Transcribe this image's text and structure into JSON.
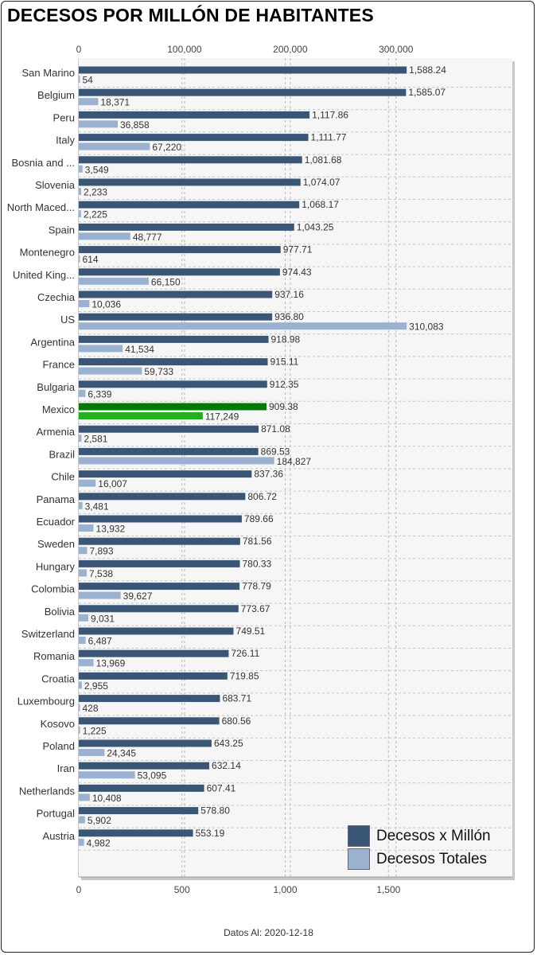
{
  "title": "DECESOS POR MILLÓN DE HABITANTES",
  "footer": "Datos Al: 2020-12-18",
  "colors": {
    "per_million": "#3a5677",
    "total": "#9ab2d0",
    "highlight_per_million": "#007a00",
    "highlight_total": "#20b020"
  },
  "chart_data": {
    "type": "bar",
    "orientation": "horizontal",
    "highlight": "Mexico",
    "categories": [
      "San Marino",
      "Belgium",
      "Peru",
      "Italy",
      "Bosnia and ...",
      "Slovenia",
      "North Maced...",
      "Spain",
      "Montenegro",
      "United King...",
      "Czechia",
      "US",
      "Argentina",
      "France",
      "Bulgaria",
      "Mexico",
      "Armenia",
      "Brazil",
      "Chile",
      "Panama",
      "Ecuador",
      "Sweden",
      "Hungary",
      "Colombia",
      "Bolivia",
      "Switzerland",
      "Romania",
      "Croatia",
      "Luxembourg",
      "Kosovo",
      "Poland",
      "Iran",
      "Netherlands",
      "Portugal",
      "Austria"
    ],
    "series": [
      {
        "name": "Decesos x Millón",
        "axis": "bottom",
        "values": [
          1588.24,
          1585.07,
          1117.86,
          1111.77,
          1081.68,
          1074.07,
          1068.17,
          1043.25,
          977.71,
          974.43,
          937.16,
          936.8,
          918.98,
          915.11,
          912.35,
          909.38,
          871.08,
          869.53,
          837.36,
          806.72,
          789.66,
          781.56,
          780.33,
          778.79,
          773.67,
          749.51,
          726.11,
          719.85,
          683.71,
          680.56,
          643.25,
          632.14,
          607.41,
          578.8,
          553.19
        ],
        "labels": [
          "1,588.24",
          "1,585.07",
          "1,117.86",
          "1,111.77",
          "1,081.68",
          "1,074.07",
          "1,068.17",
          "1,043.25",
          "977.71",
          "974.43",
          "937.16",
          "936.80",
          "918.98",
          "915.11",
          "912.35",
          "909.38",
          "871.08",
          "869.53",
          "837.36",
          "806.72",
          "789.66",
          "781.56",
          "780.33",
          "778.79",
          "773.67",
          "749.51",
          "726.11",
          "719.85",
          "683.71",
          "680.56",
          "643.25",
          "632.14",
          "607.41",
          "578.80",
          "553.19"
        ]
      },
      {
        "name": "Decesos Totales",
        "axis": "top",
        "values": [
          54,
          18371,
          36858,
          67220,
          3549,
          2233,
          2225,
          48777,
          614,
          66150,
          10036,
          310083,
          41534,
          59733,
          6339,
          117249,
          2581,
          184827,
          16007,
          3481,
          13932,
          7893,
          7538,
          39627,
          9031,
          6487,
          13969,
          2955,
          428,
          1225,
          24345,
          53095,
          10408,
          5902,
          4982
        ],
        "labels": [
          "54",
          "18,371",
          "36,858",
          "67,220",
          "3,549",
          "2,233",
          "2,225",
          "48,777",
          "614",
          "66,150",
          "10,036",
          "310,083",
          "41,534",
          "59,733",
          "6,339",
          "117,249",
          "2,581",
          "184,827",
          "16,007",
          "3,481",
          "13,932",
          "7,893",
          "7,538",
          "39,627",
          "9,031",
          "6,487",
          "13,969",
          "2,955",
          "428",
          "1,225",
          "24,345",
          "53,095",
          "10,408",
          "5,902",
          "4,982"
        ]
      }
    ],
    "top_axis": {
      "max": 410000,
      "ticks": [
        0,
        100000,
        200000,
        300000
      ],
      "tick_labels": [
        "0",
        "100,000",
        "200,000",
        "300,000"
      ]
    },
    "bottom_axis": {
      "max": 2100,
      "ticks": [
        0,
        500,
        1000,
        1500
      ],
      "tick_labels": [
        "0",
        "500",
        "1,000",
        "1,500"
      ]
    },
    "grid": true,
    "legend_position": "bottom-right"
  }
}
